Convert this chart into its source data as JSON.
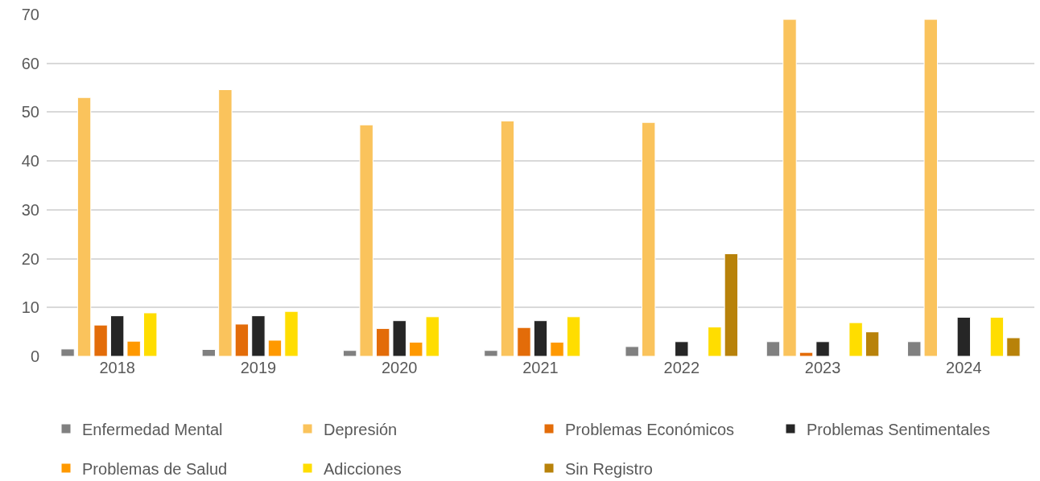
{
  "chart_data": {
    "type": "bar",
    "categories": [
      "2018",
      "2019",
      "2020",
      "2021",
      "2022",
      "2023",
      "2024"
    ],
    "series": [
      {
        "name": "Enfermedad Mental",
        "color": "#808080",
        "values": [
          1.5,
          1.4,
          1.2,
          1.2,
          2,
          3,
          3
        ]
      },
      {
        "name": "Depresión",
        "color": "#fac35c",
        "values": [
          53,
          54.6,
          47.4,
          48.2,
          47.9,
          69,
          69
        ]
      },
      {
        "name": "Problemas Económicos",
        "color": "#e36c09",
        "values": [
          6.4,
          6.6,
          5.7,
          5.9,
          null,
          0.8,
          null
        ]
      },
      {
        "name": "Problemas Sentimentales",
        "color": "#262626",
        "values": [
          8.3,
          8.3,
          7.3,
          7.3,
          3,
          3,
          8
        ]
      },
      {
        "name": "Problemas de Salud",
        "color": "#ff9900",
        "values": [
          3.1,
          3.3,
          2.9,
          2.9,
          null,
          null,
          null
        ]
      },
      {
        "name": "Adicciones",
        "color": "#ffdd00",
        "values": [
          8.9,
          9.2,
          8.1,
          8.1,
          6,
          6.9,
          8
        ]
      },
      {
        "name": "Sin Registro",
        "color": "#b8820a",
        "values": [
          null,
          null,
          null,
          null,
          21,
          5,
          3.8
        ]
      }
    ],
    "ylim": [
      0,
      70
    ],
    "yticks": [
      0,
      10,
      20,
      30,
      40,
      50,
      60,
      70
    ],
    "grid": "y",
    "legend": "bottom"
  }
}
